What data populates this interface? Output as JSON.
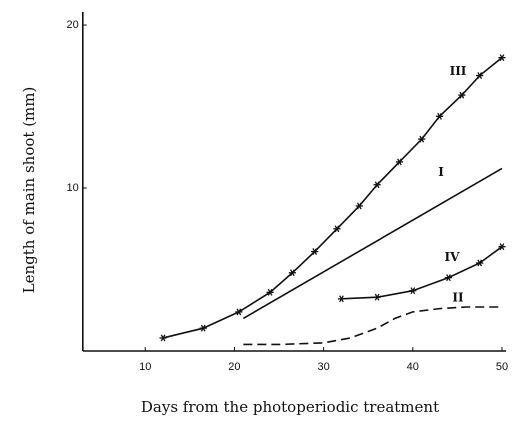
{
  "chart_data": {
    "type": "line",
    "xlabel": "Days from the photoperiodic treatment",
    "ylabel": "Length of main shoot (mm)",
    "xlim": [
      3,
      50
    ],
    "xticks": [
      10,
      20,
      30,
      40,
      50
    ],
    "ylim": [
      0,
      20.8
    ],
    "yticks": [
      10,
      20
    ],
    "series": [
      {
        "name": "III",
        "color": "#111111",
        "style": "solid",
        "marker": "star",
        "x": [
          12,
          16.5,
          20.5,
          24,
          26.5,
          29,
          31.5,
          34,
          36,
          38.5,
          41,
          43,
          45.5,
          47.5,
          50
        ],
        "values": [
          0.8,
          1.4,
          2.4,
          3.6,
          4.8,
          6.1,
          7.5,
          8.9,
          10.2,
          11.6,
          13.0,
          14.4,
          15.7,
          16.9,
          18.0
        ]
      },
      {
        "name": "I",
        "color": "#111111",
        "style": "solid",
        "marker": null,
        "x": [
          21,
          50
        ],
        "values": [
          2.0,
          11.2
        ]
      },
      {
        "name": "IV",
        "color": "#111111",
        "style": "solid",
        "marker": "star",
        "x": [
          32,
          36,
          40,
          44,
          47.5,
          50
        ],
        "values": [
          3.2,
          3.3,
          3.7,
          4.5,
          5.4,
          6.4
        ]
      },
      {
        "name": "II",
        "color": "#111111",
        "style": "dashed",
        "marker": null,
        "x": [
          21,
          25,
          30,
          33,
          36,
          38,
          40,
          43,
          46,
          50
        ],
        "values": [
          0.4,
          0.4,
          0.5,
          0.8,
          1.4,
          2.0,
          2.4,
          2.6,
          2.7,
          2.7
        ]
      }
    ]
  }
}
